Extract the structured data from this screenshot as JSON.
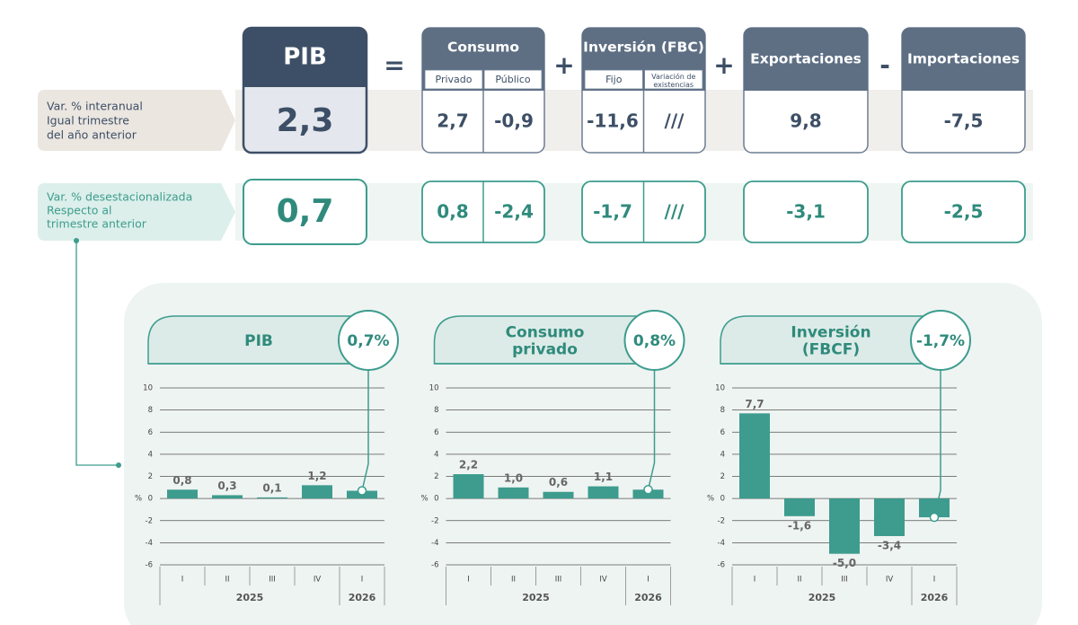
{
  "table": {
    "operators": [
      "=",
      "+",
      "+",
      "-"
    ],
    "columns": [
      {
        "title": "PIB"
      },
      {
        "title": "Consumo",
        "sub": [
          "Privado",
          "Público"
        ]
      },
      {
        "title": "Inversión (FBC)",
        "sub": [
          "Fijo",
          "Variación de existencias"
        ]
      },
      {
        "title": "Exportaciones"
      },
      {
        "title": "Importaciones"
      }
    ],
    "rows": [
      {
        "label": [
          "Var. % interanual",
          "Igual trimestre",
          "del año anterior"
        ],
        "values": [
          "2,3",
          "2,7",
          "-0,9",
          "-11,6",
          "///",
          "9,8",
          "-7,5"
        ]
      },
      {
        "label": [
          "Var. % desestacionalizada",
          "Respecto al",
          "trimestre anterior"
        ],
        "values": [
          "0,7",
          "0,8",
          "-2,4",
          "-1,7",
          "///",
          "-3,1",
          "-2,5"
        ]
      }
    ]
  },
  "chart_data": [
    {
      "type": "bar",
      "title": [
        "PIB"
      ],
      "badge": "0,7%",
      "categories": [
        "I",
        "II",
        "III",
        "IV",
        "I"
      ],
      "groups": [
        "2025",
        "2026"
      ],
      "values": [
        0.8,
        0.3,
        0.1,
        1.2,
        0.7
      ],
      "value_labels": [
        "0,8",
        "0,3",
        "0,1",
        "1,2",
        null
      ],
      "color": "#3d9c8e",
      "y_unit": "%",
      "ylim": [
        -6,
        10
      ],
      "yticks": [
        -6,
        -4,
        -2,
        0,
        2,
        4,
        6,
        8,
        10
      ],
      "grid": true
    },
    {
      "type": "bar",
      "title": [
        "Consumo",
        "privado"
      ],
      "badge": "0,8%",
      "categories": [
        "I",
        "II",
        "III",
        "IV",
        "I"
      ],
      "groups": [
        "2025",
        "2026"
      ],
      "values": [
        2.2,
        1.0,
        0.6,
        1.1,
        0.8
      ],
      "value_labels": [
        "2,2",
        "1,0",
        "0,6",
        "1,1",
        null
      ],
      "color": "#3d9c8e",
      "y_unit": "%",
      "ylim": [
        -6,
        10
      ],
      "yticks": [
        -6,
        -4,
        -2,
        0,
        2,
        4,
        6,
        8,
        10
      ],
      "grid": true
    },
    {
      "type": "bar",
      "title": [
        "Inversión",
        "(FBCF)"
      ],
      "badge": "-1,7%",
      "categories": [
        "I",
        "II",
        "III",
        "IV",
        "I"
      ],
      "groups": [
        "2025",
        "2026"
      ],
      "values": [
        7.7,
        -1.6,
        -5.0,
        -3.4,
        -1.7
      ],
      "value_labels": [
        "7,7",
        "-1,6",
        "-5,0",
        "-3,4",
        null
      ],
      "color": "#3d9c8e",
      "y_unit": "%",
      "ylim": [
        -6,
        10
      ],
      "yticks": [
        -6,
        -4,
        -2,
        0,
        2,
        4,
        6,
        8,
        10
      ],
      "grid": true
    }
  ]
}
